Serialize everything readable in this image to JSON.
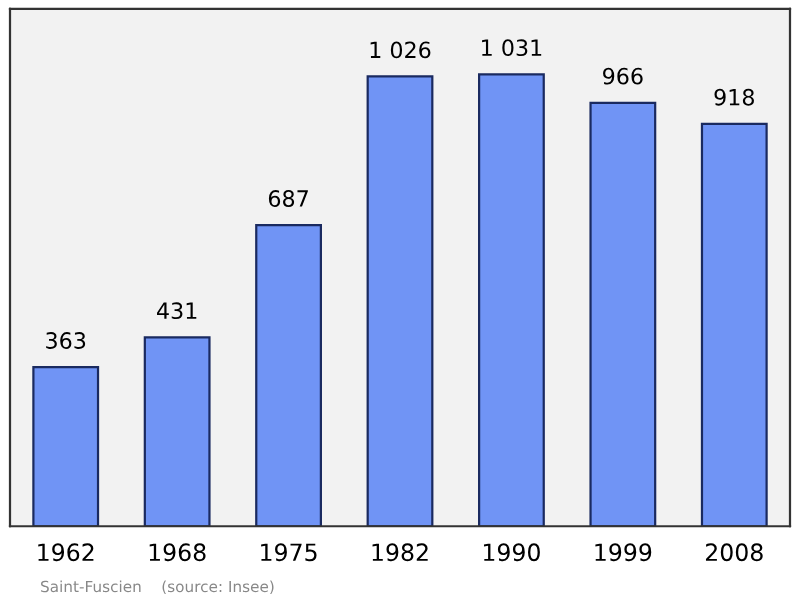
{
  "chart_data": {
    "type": "bar",
    "categories": [
      "1962",
      "1968",
      "1975",
      "1982",
      "1990",
      "1999",
      "2008"
    ],
    "values": [
      363,
      431,
      687,
      1026,
      1031,
      966,
      918
    ],
    "value_labels": [
      "363",
      "431",
      "687",
      "1 026",
      "1 031",
      "966",
      "918"
    ],
    "color": "#7094f5",
    "ylim": [
      0,
      1180
    ],
    "tick_labels": "x",
    "grid": false,
    "annotations": [
      "Saint-Fuscien    (source: Insee)"
    ]
  }
}
